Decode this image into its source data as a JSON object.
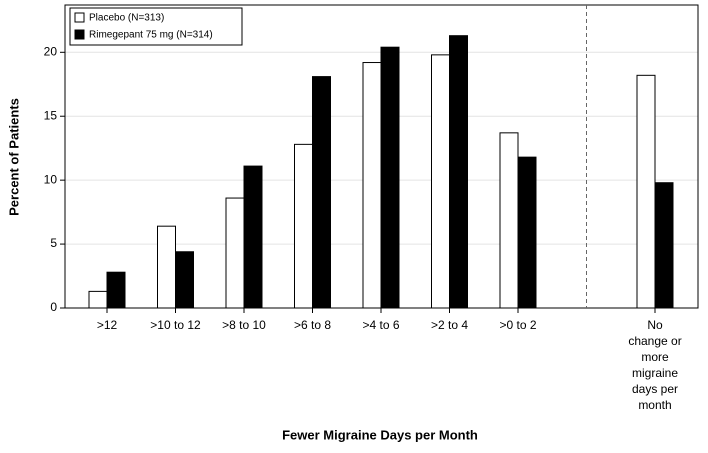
{
  "chart_data": {
    "type": "bar",
    "x_label": "Fewer Migraine Days per Month",
    "y_label": "Percent of Patients",
    "categories": [
      ">12",
      ">10 to 12",
      ">8 to 10",
      ">6 to 8",
      ">4 to 6",
      ">2 to 4",
      ">0 to 2",
      "No change or more migraine days per month"
    ],
    "series": [
      {
        "name": "Placebo (N=313)",
        "color": "#ffffff",
        "values": [
          1.3,
          6.4,
          8.6,
          12.8,
          19.2,
          19.8,
          13.7,
          18.2
        ]
      },
      {
        "name": "Rimegepant 75 mg (N=314)",
        "color": "#000000",
        "values": [
          2.8,
          4.4,
          11.1,
          18.1,
          20.4,
          21.3,
          11.8,
          9.8
        ]
      }
    ],
    "ylim": [
      0,
      23.7
    ],
    "yticks": [
      0,
      5,
      10,
      15,
      20
    ],
    "grid": true,
    "legend": "top-left"
  }
}
